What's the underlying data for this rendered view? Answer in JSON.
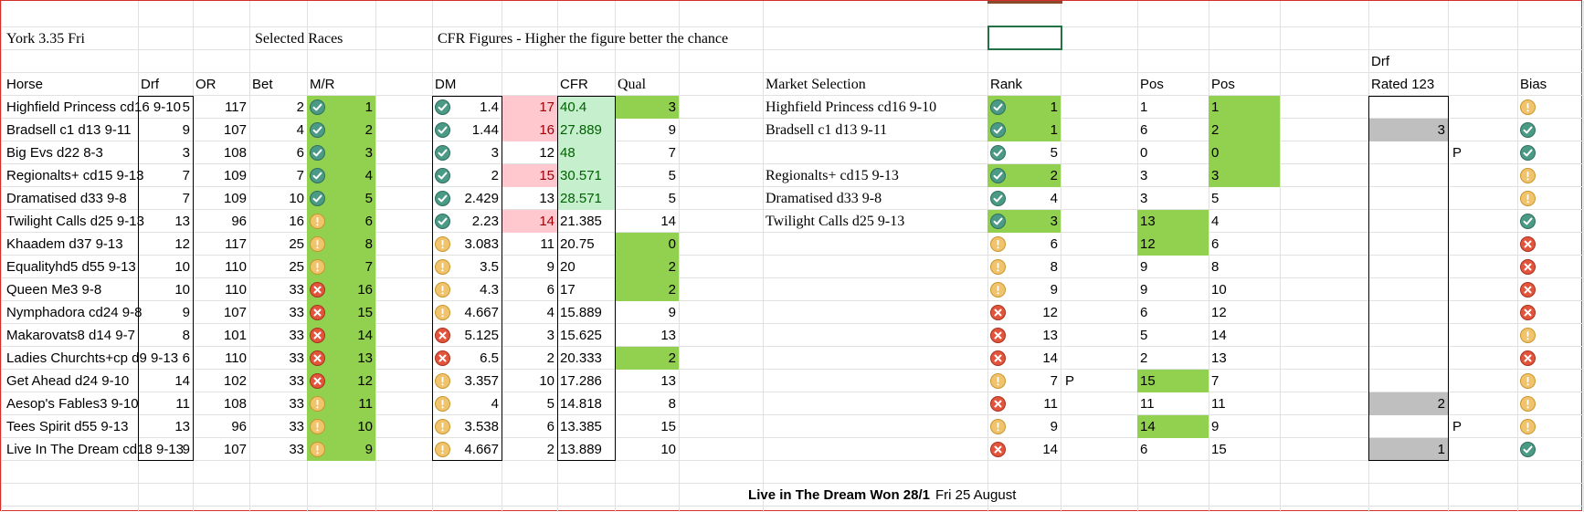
{
  "headers": {
    "title": "York 3.35 Fri",
    "selected_races": "Selected Races",
    "cfr_title": "CFR Figures - Higher the figure better the chance",
    "drf_top": "Drf",
    "horse": "Horse",
    "drf": "Drf",
    "or": "OR",
    "bet": "Bet",
    "mr": "M/R",
    "dm": "DM",
    "cfr": "CFR",
    "qual": "Qual",
    "market": "Market Selection",
    "rank": "Rank",
    "pos1": "Pos",
    "pos2": "Pos",
    "rated": "Rated 123",
    "bias": "Bias"
  },
  "rows": [
    {
      "horse": "Highfield Princess cd16 9-10",
      "drf": "5",
      "or": "117",
      "bet": "2",
      "mr_icon": "ok",
      "mr": "1",
      "dm_icon": "ok",
      "dm": "1.4",
      "pk": "17",
      "pk_pink": true,
      "cfr": "40.4",
      "cfr_lg": true,
      "qual": "3",
      "qual_g": true,
      "market": "Highfield Princess cd16 9-10",
      "rank_icon": "ok",
      "rank": "1",
      "rank_g": true,
      "pflag": "",
      "pos1": "1",
      "pos1_g": false,
      "pos2": "1",
      "pos2_g": true,
      "rated": "",
      "flag2": "",
      "bias_icon": "warn"
    },
    {
      "horse": "Bradsell c1 d13 9-11",
      "drf": "9",
      "or": "107",
      "bet": "4",
      "mr_icon": "ok",
      "mr": "2",
      "dm_icon": "ok",
      "dm": "1.44",
      "pk": "16",
      "pk_pink": true,
      "cfr": "27.889",
      "cfr_lg": true,
      "qual": "9",
      "qual_g": false,
      "market": "Bradsell c1 d13 9-11",
      "rank_icon": "ok",
      "rank": "1",
      "rank_g": true,
      "pflag": "",
      "pos1": "6",
      "pos1_g": false,
      "pos2": "2",
      "pos2_g": true,
      "rated": "3",
      "flag2": "",
      "bias_icon": "ok"
    },
    {
      "horse": "Big Evs d22 8-3",
      "drf": "3",
      "or": "108",
      "bet": "6",
      "mr_icon": "ok",
      "mr": "3",
      "dm_icon": "ok",
      "dm": "3",
      "pk": "12",
      "pk_pink": false,
      "cfr": "48",
      "cfr_lg": true,
      "qual": "7",
      "qual_g": false,
      "market": "",
      "rank_icon": "ok",
      "rank": "5",
      "rank_g": false,
      "pflag": "",
      "pos1": "0",
      "pos1_g": false,
      "pos2": "0",
      "pos2_g": true,
      "rated": "",
      "flag2": "P",
      "bias_icon": "ok"
    },
    {
      "horse": "Regionalts+ cd15 9-13",
      "drf": "7",
      "or": "109",
      "bet": "7",
      "mr_icon": "ok",
      "mr": "4",
      "dm_icon": "ok",
      "dm": "2",
      "pk": "15",
      "pk_pink": true,
      "cfr": "30.571",
      "cfr_lg": true,
      "qual": "5",
      "qual_g": false,
      "market": "Regionalts+ cd15 9-13",
      "rank_icon": "ok",
      "rank": "2",
      "rank_g": true,
      "pflag": "",
      "pos1": "3",
      "pos1_g": false,
      "pos2": "3",
      "pos2_g": true,
      "rated": "",
      "flag2": "",
      "bias_icon": "warn"
    },
    {
      "horse": "Dramatised d33 9-8",
      "drf": "7",
      "or": "109",
      "bet": "10",
      "mr_icon": "ok",
      "mr": "5",
      "dm_icon": "ok",
      "dm": "2.429",
      "pk": "13",
      "pk_pink": false,
      "cfr": "28.571",
      "cfr_lg": true,
      "qual": "5",
      "qual_g": false,
      "market": "Dramatised d33 9-8",
      "rank_icon": "ok",
      "rank": "4",
      "rank_g": false,
      "pflag": "",
      "pos1": "3",
      "pos1_g": false,
      "pos2": "5",
      "pos2_g": false,
      "rated": "",
      "flag2": "",
      "bias_icon": "warn"
    },
    {
      "horse": "Twilight Calls d25 9-13",
      "drf": "13",
      "or": "96",
      "bet": "16",
      "mr_icon": "warn",
      "mr": "6",
      "dm_icon": "ok",
      "dm": "2.23",
      "pk": "14",
      "pk_pink": true,
      "cfr": "21.385",
      "cfr_lg": false,
      "qual": "14",
      "qual_g": false,
      "market": "Twilight Calls d25 9-13",
      "rank_icon": "ok",
      "rank": "3",
      "rank_g": true,
      "pflag": "",
      "pos1": "13",
      "pos1_g": true,
      "pos2": "4",
      "pos2_g": false,
      "rated": "",
      "flag2": "",
      "bias_icon": "ok"
    },
    {
      "horse": "Khaadem d37 9-13",
      "drf": "12",
      "or": "117",
      "bet": "25",
      "mr_icon": "warn",
      "mr": "8",
      "dm_icon": "warn",
      "dm": "3.083",
      "pk": "11",
      "pk_pink": false,
      "cfr": "20.75",
      "cfr_lg": false,
      "qual": "0",
      "qual_g": true,
      "market": "",
      "rank_icon": "warn",
      "rank": "6",
      "rank_g": false,
      "pflag": "",
      "pos1": "12",
      "pos1_g": true,
      "pos2": "6",
      "pos2_g": false,
      "rated": "",
      "flag2": "",
      "bias_icon": "x"
    },
    {
      "horse": "Equalityhd5 d55 9-13",
      "drf": "10",
      "or": "110",
      "bet": "25",
      "mr_icon": "warn",
      "mr": "7",
      "dm_icon": "warn",
      "dm": "3.5",
      "pk": "9",
      "pk_pink": false,
      "cfr": "20",
      "cfr_lg": false,
      "qual": "2",
      "qual_g": true,
      "market": "",
      "rank_icon": "warn",
      "rank": "8",
      "rank_g": false,
      "pflag": "",
      "pos1": "9",
      "pos1_g": false,
      "pos2": "8",
      "pos2_g": false,
      "rated": "",
      "flag2": "",
      "bias_icon": "x"
    },
    {
      "horse": "Queen Me3 9-8",
      "drf": "10",
      "or": "110",
      "bet": "33",
      "mr_icon": "x",
      "mr": "16",
      "dm_icon": "warn",
      "dm": "4.3",
      "pk": "6",
      "pk_pink": false,
      "cfr": "17",
      "cfr_lg": false,
      "qual": "2",
      "qual_g": true,
      "market": "",
      "rank_icon": "warn",
      "rank": "9",
      "rank_g": false,
      "pflag": "",
      "pos1": "9",
      "pos1_g": false,
      "pos2": "10",
      "pos2_g": false,
      "rated": "",
      "flag2": "",
      "bias_icon": "x"
    },
    {
      "horse": "Nymphadora cd24 9-8",
      "drf": "9",
      "or": "107",
      "bet": "33",
      "mr_icon": "x",
      "mr": "15",
      "dm_icon": "warn",
      "dm": "4.667",
      "pk": "4",
      "pk_pink": false,
      "cfr": "15.889",
      "cfr_lg": false,
      "qual": "9",
      "qual_g": false,
      "market": "",
      "rank_icon": "x",
      "rank": "12",
      "rank_g": false,
      "pflag": "",
      "pos1": "6",
      "pos1_g": false,
      "pos2": "12",
      "pos2_g": false,
      "rated": "",
      "flag2": "",
      "bias_icon": "x"
    },
    {
      "horse": "Makarovats8 d14 9-7",
      "drf": "8",
      "or": "101",
      "bet": "33",
      "mr_icon": "x",
      "mr": "14",
      "dm_icon": "x",
      "dm": "5.125",
      "pk": "3",
      "pk_pink": false,
      "cfr": "15.625",
      "cfr_lg": false,
      "qual": "13",
      "qual_g": false,
      "market": "",
      "rank_icon": "x",
      "rank": "13",
      "rank_g": false,
      "pflag": "",
      "pos1": "5",
      "pos1_g": false,
      "pos2": "14",
      "pos2_g": false,
      "rated": "",
      "flag2": "",
      "bias_icon": "warn"
    },
    {
      "horse": "Ladies Churchts+cp d9 9-13",
      "drf": "6",
      "or": "110",
      "bet": "33",
      "mr_icon": "x",
      "mr": "13",
      "dm_icon": "x",
      "dm": "6.5",
      "pk": "2",
      "pk_pink": false,
      "cfr": "20.333",
      "cfr_lg": false,
      "qual": "2",
      "qual_g": true,
      "market": "",
      "rank_icon": "x",
      "rank": "14",
      "rank_g": false,
      "pflag": "",
      "pos1": "2",
      "pos1_g": false,
      "pos2": "13",
      "pos2_g": false,
      "rated": "",
      "flag2": "",
      "bias_icon": "x"
    },
    {
      "horse": "Get Ahead d24 9-10",
      "drf": "14",
      "or": "102",
      "bet": "33",
      "mr_icon": "x",
      "mr": "12",
      "dm_icon": "warn",
      "dm": "3.357",
      "pk": "10",
      "pk_pink": false,
      "cfr": "17.286",
      "cfr_lg": false,
      "qual": "13",
      "qual_g": false,
      "market": "",
      "rank_icon": "warn",
      "rank": "7",
      "rank_g": false,
      "pflag": "P",
      "pos1": "15",
      "pos1_g": true,
      "pos2": "7",
      "pos2_g": false,
      "rated": "",
      "flag2": "",
      "bias_icon": "warn"
    },
    {
      "horse": "Aesop's Fables3 9-10",
      "drf": "11",
      "or": "108",
      "bet": "33",
      "mr_icon": "warn",
      "mr": "11",
      "dm_icon": "warn",
      "dm": "4",
      "pk": "5",
      "pk_pink": false,
      "cfr": "14.818",
      "cfr_lg": false,
      "qual": "8",
      "qual_g": false,
      "market": "",
      "rank_icon": "x",
      "rank": "11",
      "rank_g": false,
      "pflag": "",
      "pos1": "11",
      "pos1_g": false,
      "pos2": "11",
      "pos2_g": false,
      "rated": "2",
      "flag2": "",
      "bias_icon": "warn"
    },
    {
      "horse": "Tees Spirit d55 9-13",
      "drf": "13",
      "or": "96",
      "bet": "33",
      "mr_icon": "warn",
      "mr": "10",
      "dm_icon": "warn",
      "dm": "3.538",
      "pk": "6",
      "pk_pink": false,
      "cfr": "13.385",
      "cfr_lg": false,
      "qual": "15",
      "qual_g": false,
      "market": "",
      "rank_icon": "warn",
      "rank": "9",
      "rank_g": false,
      "pflag": "",
      "pos1": "14",
      "pos1_g": true,
      "pos2": "9",
      "pos2_g": false,
      "rated": "",
      "flag2": "P",
      "bias_icon": "warn"
    },
    {
      "horse": "Live In The Dream cd18 9-13",
      "drf": "9",
      "or": "107",
      "bet": "33",
      "mr_icon": "warn",
      "mr": "9",
      "dm_icon": "warn",
      "dm": "4.667",
      "pk": "2",
      "pk_pink": false,
      "cfr": "13.889",
      "cfr_lg": false,
      "qual": "10",
      "qual_g": false,
      "market": "",
      "rank_icon": "x",
      "rank": "14",
      "rank_g": false,
      "pflag": "",
      "pos1": "6",
      "pos1_g": false,
      "pos2": "15",
      "pos2_g": false,
      "rated": "1",
      "flag2": "",
      "bias_icon": "ok"
    }
  ],
  "footer": {
    "result": "Live in The Dream Won 28/1",
    "date": "Fri 25 August"
  },
  "colors": {
    "green_fill": "#92d050",
    "light_green_fill": "#c6efce",
    "pink_fill": "#ffc7ce",
    "grey_fill": "#bfbfbf"
  }
}
